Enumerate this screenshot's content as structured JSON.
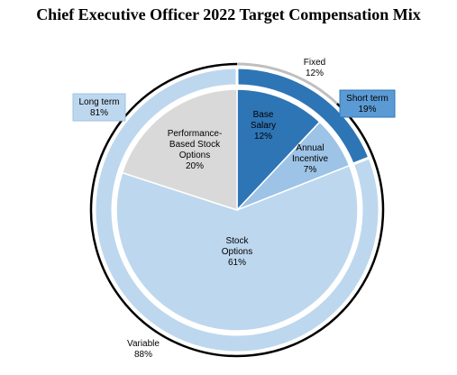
{
  "chart_data": {
    "type": "pie",
    "title": "Chief Executive Officer 2022 Target Compensation Mix",
    "inner_ring": [
      {
        "label": [
          "Base",
          "Salary",
          "12%"
        ],
        "value": 12,
        "color": "#2e75b6"
      },
      {
        "label": [
          "Annual",
          "Incentive",
          "7%"
        ],
        "value": 7,
        "color": "#9dc3e6"
      },
      {
        "label": [
          "Stock",
          "Options",
          "61%"
        ],
        "value": 61,
        "color": "#bdd7ee"
      },
      {
        "label": [
          "Performance-",
          "Based Stock",
          "Options",
          "20%"
        ],
        "value": 20,
        "color": "#d9d9d9"
      }
    ],
    "middle_ring": [
      {
        "label": [
          "Short term",
          "19%"
        ],
        "value": 19,
        "color": "#2e75b6"
      },
      {
        "label": [
          "Long term",
          "81%"
        ],
        "value": 81,
        "color": "#bdd7ee"
      }
    ],
    "outer_ring": [
      {
        "label": [
          "Fixed",
          "12%"
        ],
        "value": 12,
        "color": "#bfbfbf"
      },
      {
        "label": [
          "Variable",
          "88%"
        ],
        "value": 88,
        "color": "#000000"
      }
    ]
  }
}
